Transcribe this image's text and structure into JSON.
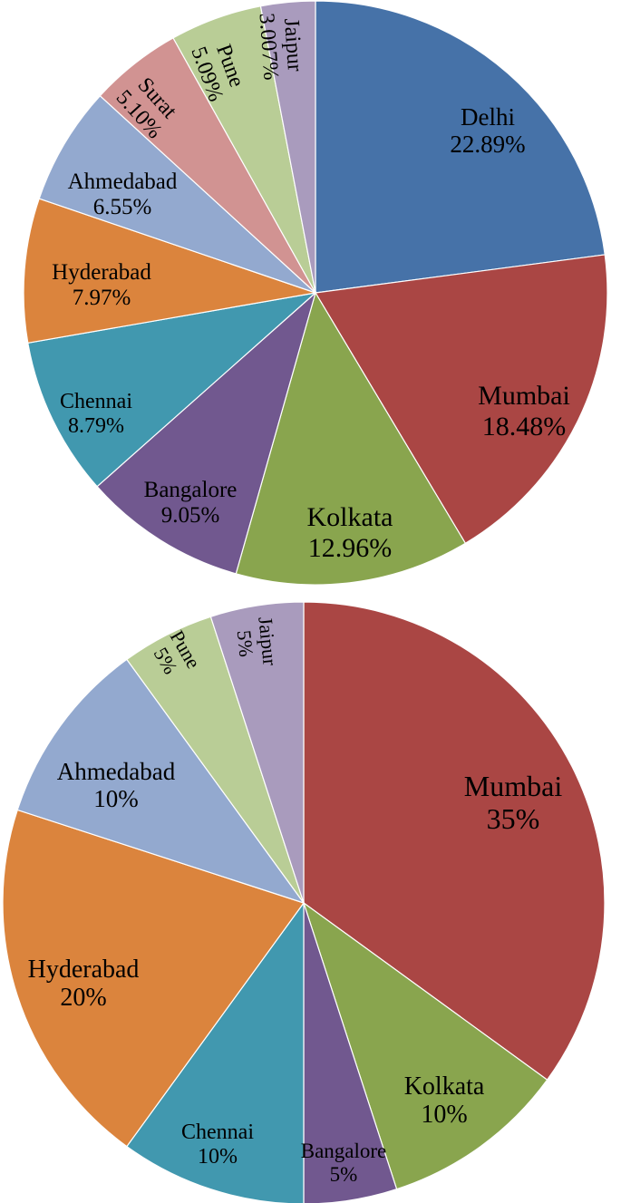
{
  "chart_data": [
    {
      "type": "pie",
      "title": "",
      "start_angle_deg": 0,
      "direction": "clockwise",
      "slices": [
        {
          "label": "Delhi",
          "value": 22.89,
          "value_text": "22.89%",
          "color": "#4672A8"
        },
        {
          "label": "Mumbai",
          "value": 18.48,
          "value_text": "18.48%",
          "color": "#AA4644"
        },
        {
          "label": "Kolkata",
          "value": 12.96,
          "value_text": "12.96%",
          "color": "#89A54E"
        },
        {
          "label": "Bangalore",
          "value": 9.05,
          "value_text": "9.05%",
          "color": "#71588F"
        },
        {
          "label": "Chennai",
          "value": 8.79,
          "value_text": "8.79%",
          "color": "#4198AF"
        },
        {
          "label": "Hyderabad",
          "value": 7.97,
          "value_text": "7.97%",
          "color": "#DB843D"
        },
        {
          "label": "Ahmedabad",
          "value": 6.55,
          "value_text": "6.55%",
          "color": "#93A9CF"
        },
        {
          "label": "Surat",
          "value": 5.1,
          "value_text": "5.10%",
          "color": "#D19392"
        },
        {
          "label": "Pune",
          "value": 5.09,
          "value_text": "5.09%",
          "color": "#B9CD96"
        },
        {
          "label": "Jaipur",
          "value": 3.007,
          "value_text": "3.007%",
          "color": "#A99BBD"
        }
      ]
    },
    {
      "type": "pie",
      "title": "",
      "start_angle_deg": 0,
      "direction": "clockwise",
      "slices": [
        {
          "label": "Mumbai",
          "value": 35,
          "value_text": "35%",
          "color": "#AA4644"
        },
        {
          "label": "Kolkata",
          "value": 10,
          "value_text": "10%",
          "color": "#89A54E"
        },
        {
          "label": "Bangalore",
          "value": 5,
          "value_text": "5%",
          "color": "#71588F"
        },
        {
          "label": "Chennai",
          "value": 10,
          "value_text": "10%",
          "color": "#4198AF"
        },
        {
          "label": "Hyderabad",
          "value": 20,
          "value_text": "20%",
          "color": "#DB843D"
        },
        {
          "label": "Ahmedabad",
          "value": 10,
          "value_text": "10%",
          "color": "#93A9CF"
        },
        {
          "label": "Pune",
          "value": 5,
          "value_text": "5%",
          "color": "#B9CD96"
        },
        {
          "label": "Jaipur",
          "value": 5,
          "value_text": "5%",
          "color": "#A99BBD"
        }
      ]
    }
  ]
}
